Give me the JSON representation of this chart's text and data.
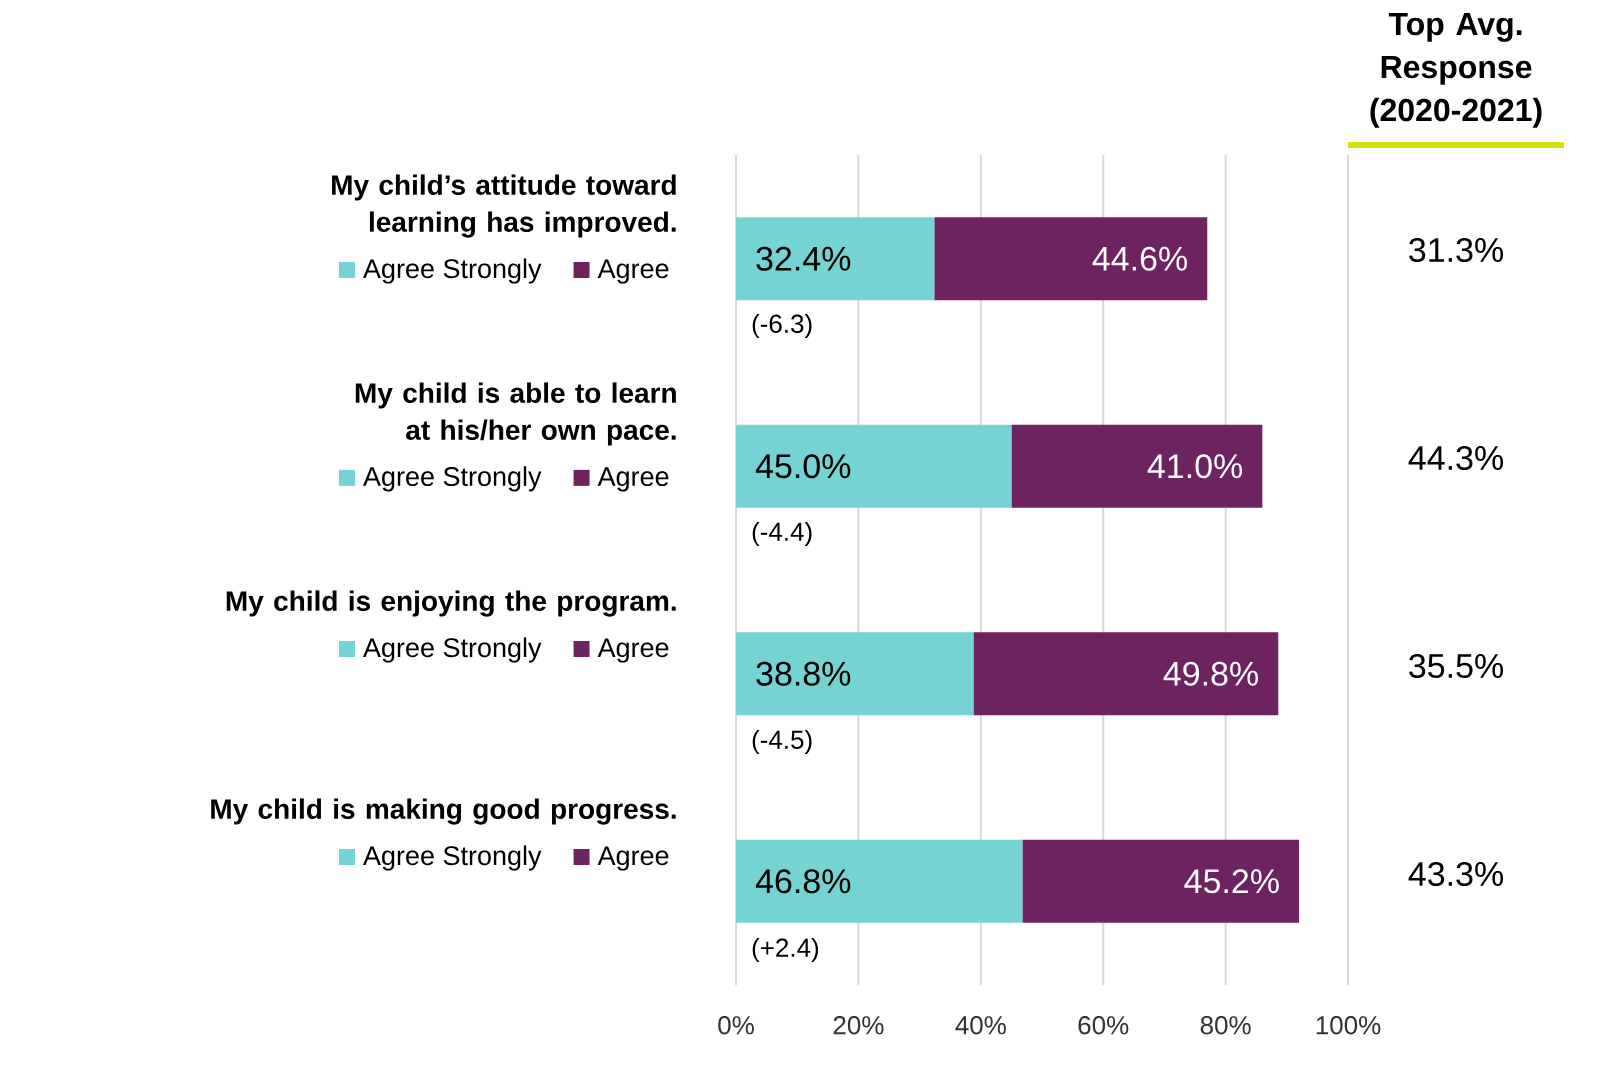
{
  "chart_data": {
    "type": "bar",
    "orientation": "horizontal",
    "stacked": true,
    "categories": [
      "My child’s attitude toward learning has improved.",
      "My child is able to learn at his/her own pace.",
      "My child is enjoying the program.",
      "My child is making good progress."
    ],
    "series": [
      {
        "name": "Agree Strongly",
        "color": "#76d3d3",
        "values": [
          32.4,
          45.0,
          38.8,
          46.8
        ],
        "value_labels": [
          "32.4%",
          "45.0%",
          "38.8%",
          "46.8%"
        ]
      },
      {
        "name": "Agree",
        "color": "#6d2360",
        "values": [
          44.6,
          41.0,
          49.8,
          45.2
        ],
        "value_labels": [
          "44.6%",
          "41.0%",
          "49.8%",
          "45.2%"
        ]
      }
    ],
    "xlim": [
      0,
      100
    ],
    "xticks": [
      {
        "value": 0,
        "label": "0%"
      },
      {
        "value": 20,
        "label": "20%"
      },
      {
        "value": 40,
        "label": "40%"
      },
      {
        "value": 60,
        "label": "60%"
      },
      {
        "value": 80,
        "label": "80%"
      },
      {
        "value": 100,
        "label": "100%"
      }
    ],
    "grid": "x",
    "legend": "left",
    "annotations": [
      "Top Avg. Response (2020-2021)",
      "31.3%",
      "44.3%",
      "35.5%",
      "43.3%",
      "(-6.3)",
      "(-4.4)",
      "(-4.5)",
      "(+2.4)"
    ]
  }
}
